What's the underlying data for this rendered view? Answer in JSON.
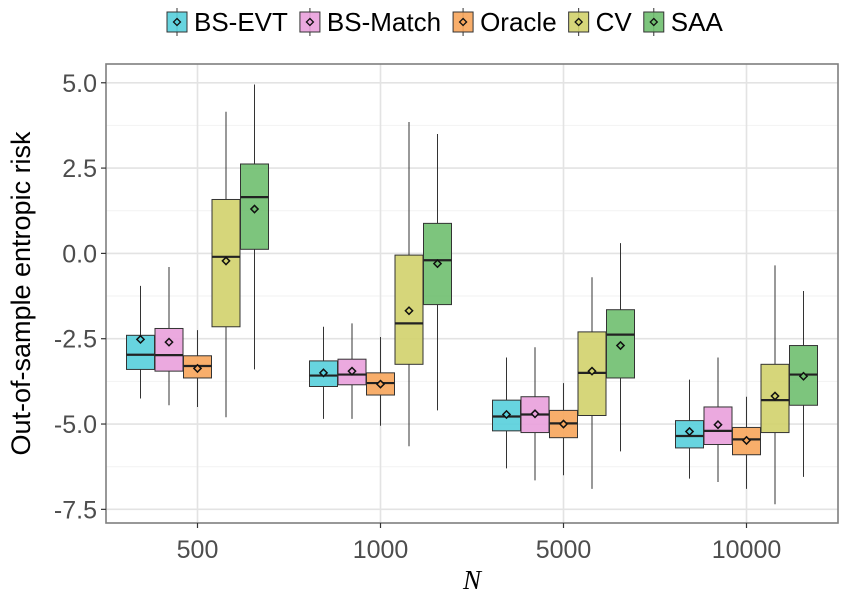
{
  "chart_data": {
    "type": "boxplot",
    "title": "",
    "xlabel": "N",
    "ylabel": "Out-of-sample entropic risk",
    "categories": [
      "500",
      "1000",
      "5000",
      "10000"
    ],
    "ylim": [
      -7.9,
      5.55
    ],
    "yticks": [
      5.0,
      2.5,
      0.0,
      -2.5,
      -5.0,
      -7.5
    ],
    "ytick_labels": [
      "5.0",
      "2.5",
      "0.0",
      "-2.5",
      "-5.0",
      "-7.5"
    ],
    "grid": true,
    "legend_position": "top",
    "series": [
      {
        "name": "BS-EVT",
        "color": "#56cfdc",
        "boxes": [
          {
            "whisker_low": -4.25,
            "q1": -3.4,
            "median": -2.97,
            "q3": -2.4,
            "whisker_high": -0.95,
            "mean": -2.52
          },
          {
            "whisker_low": -4.85,
            "q1": -3.9,
            "median": -3.58,
            "q3": -3.15,
            "whisker_high": -2.15,
            "mean": -3.5
          },
          {
            "whisker_low": -6.3,
            "q1": -5.2,
            "median": -4.78,
            "q3": -4.3,
            "whisker_high": -3.05,
            "mean": -4.72
          },
          {
            "whisker_low": -6.6,
            "q1": -5.7,
            "median": -5.35,
            "q3": -4.9,
            "whisker_high": -3.7,
            "mean": -5.22
          }
        ]
      },
      {
        "name": "BS-Match",
        "color": "#e9a0dc",
        "boxes": [
          {
            "whisker_low": -4.45,
            "q1": -3.45,
            "median": -2.98,
            "q3": -2.2,
            "whisker_high": -0.4,
            "mean": -2.6
          },
          {
            "whisker_low": -4.85,
            "q1": -3.85,
            "median": -3.55,
            "q3": -3.1,
            "whisker_high": -2.05,
            "mean": -3.45
          },
          {
            "whisker_low": -6.65,
            "q1": -5.25,
            "median": -4.72,
            "q3": -4.2,
            "whisker_high": -2.75,
            "mean": -4.7
          },
          {
            "whisker_low": -6.7,
            "q1": -5.6,
            "median": -5.2,
            "q3": -4.5,
            "whisker_high": -3.05,
            "mean": -5.02
          }
        ]
      },
      {
        "name": "Oracle",
        "color": "#f7a55b",
        "boxes": [
          {
            "whisker_low": -4.5,
            "q1": -3.65,
            "median": -3.3,
            "q3": -3.0,
            "whisker_high": -2.25,
            "mean": -3.37
          },
          {
            "whisker_low": -5.05,
            "q1": -4.15,
            "median": -3.8,
            "q3": -3.5,
            "whisker_high": -2.45,
            "mean": -3.83
          },
          {
            "whisker_low": -6.5,
            "q1": -5.4,
            "median": -4.98,
            "q3": -4.6,
            "whisker_high": -3.8,
            "mean": -5.0
          },
          {
            "whisker_low": -6.9,
            "q1": -5.9,
            "median": -5.45,
            "q3": -5.1,
            "whisker_high": -4.2,
            "mean": -5.48
          }
        ]
      },
      {
        "name": "CV",
        "color": "#d2d26b",
        "boxes": [
          {
            "whisker_low": -4.8,
            "q1": -2.15,
            "median": -0.1,
            "q3": 1.58,
            "whisker_high": 4.15,
            "mean": -0.22
          },
          {
            "whisker_low": -5.65,
            "q1": -3.25,
            "median": -2.05,
            "q3": -0.05,
            "whisker_high": 3.85,
            "mean": -1.68
          },
          {
            "whisker_low": -6.9,
            "q1": -4.75,
            "median": -3.5,
            "q3": -2.3,
            "whisker_high": -0.7,
            "mean": -3.45
          },
          {
            "whisker_low": -7.35,
            "q1": -5.25,
            "median": -4.3,
            "q3": -3.25,
            "whisker_high": -0.35,
            "mean": -4.18
          }
        ]
      },
      {
        "name": "SAA",
        "color": "#6fbf6f",
        "boxes": [
          {
            "whisker_low": -3.4,
            "q1": 0.12,
            "median": 1.65,
            "q3": 2.62,
            "whisker_high": 4.95,
            "mean": 1.3
          },
          {
            "whisker_low": -4.6,
            "q1": -1.5,
            "median": -0.2,
            "q3": 0.88,
            "whisker_high": 3.5,
            "mean": -0.3
          },
          {
            "whisker_low": -5.8,
            "q1": -3.65,
            "median": -2.38,
            "q3": -1.65,
            "whisker_high": 0.3,
            "mean": -2.7
          },
          {
            "whisker_low": -6.55,
            "q1": -4.45,
            "median": -3.55,
            "q3": -2.7,
            "whisker_high": -1.1,
            "mean": -3.6
          }
        ]
      }
    ]
  }
}
